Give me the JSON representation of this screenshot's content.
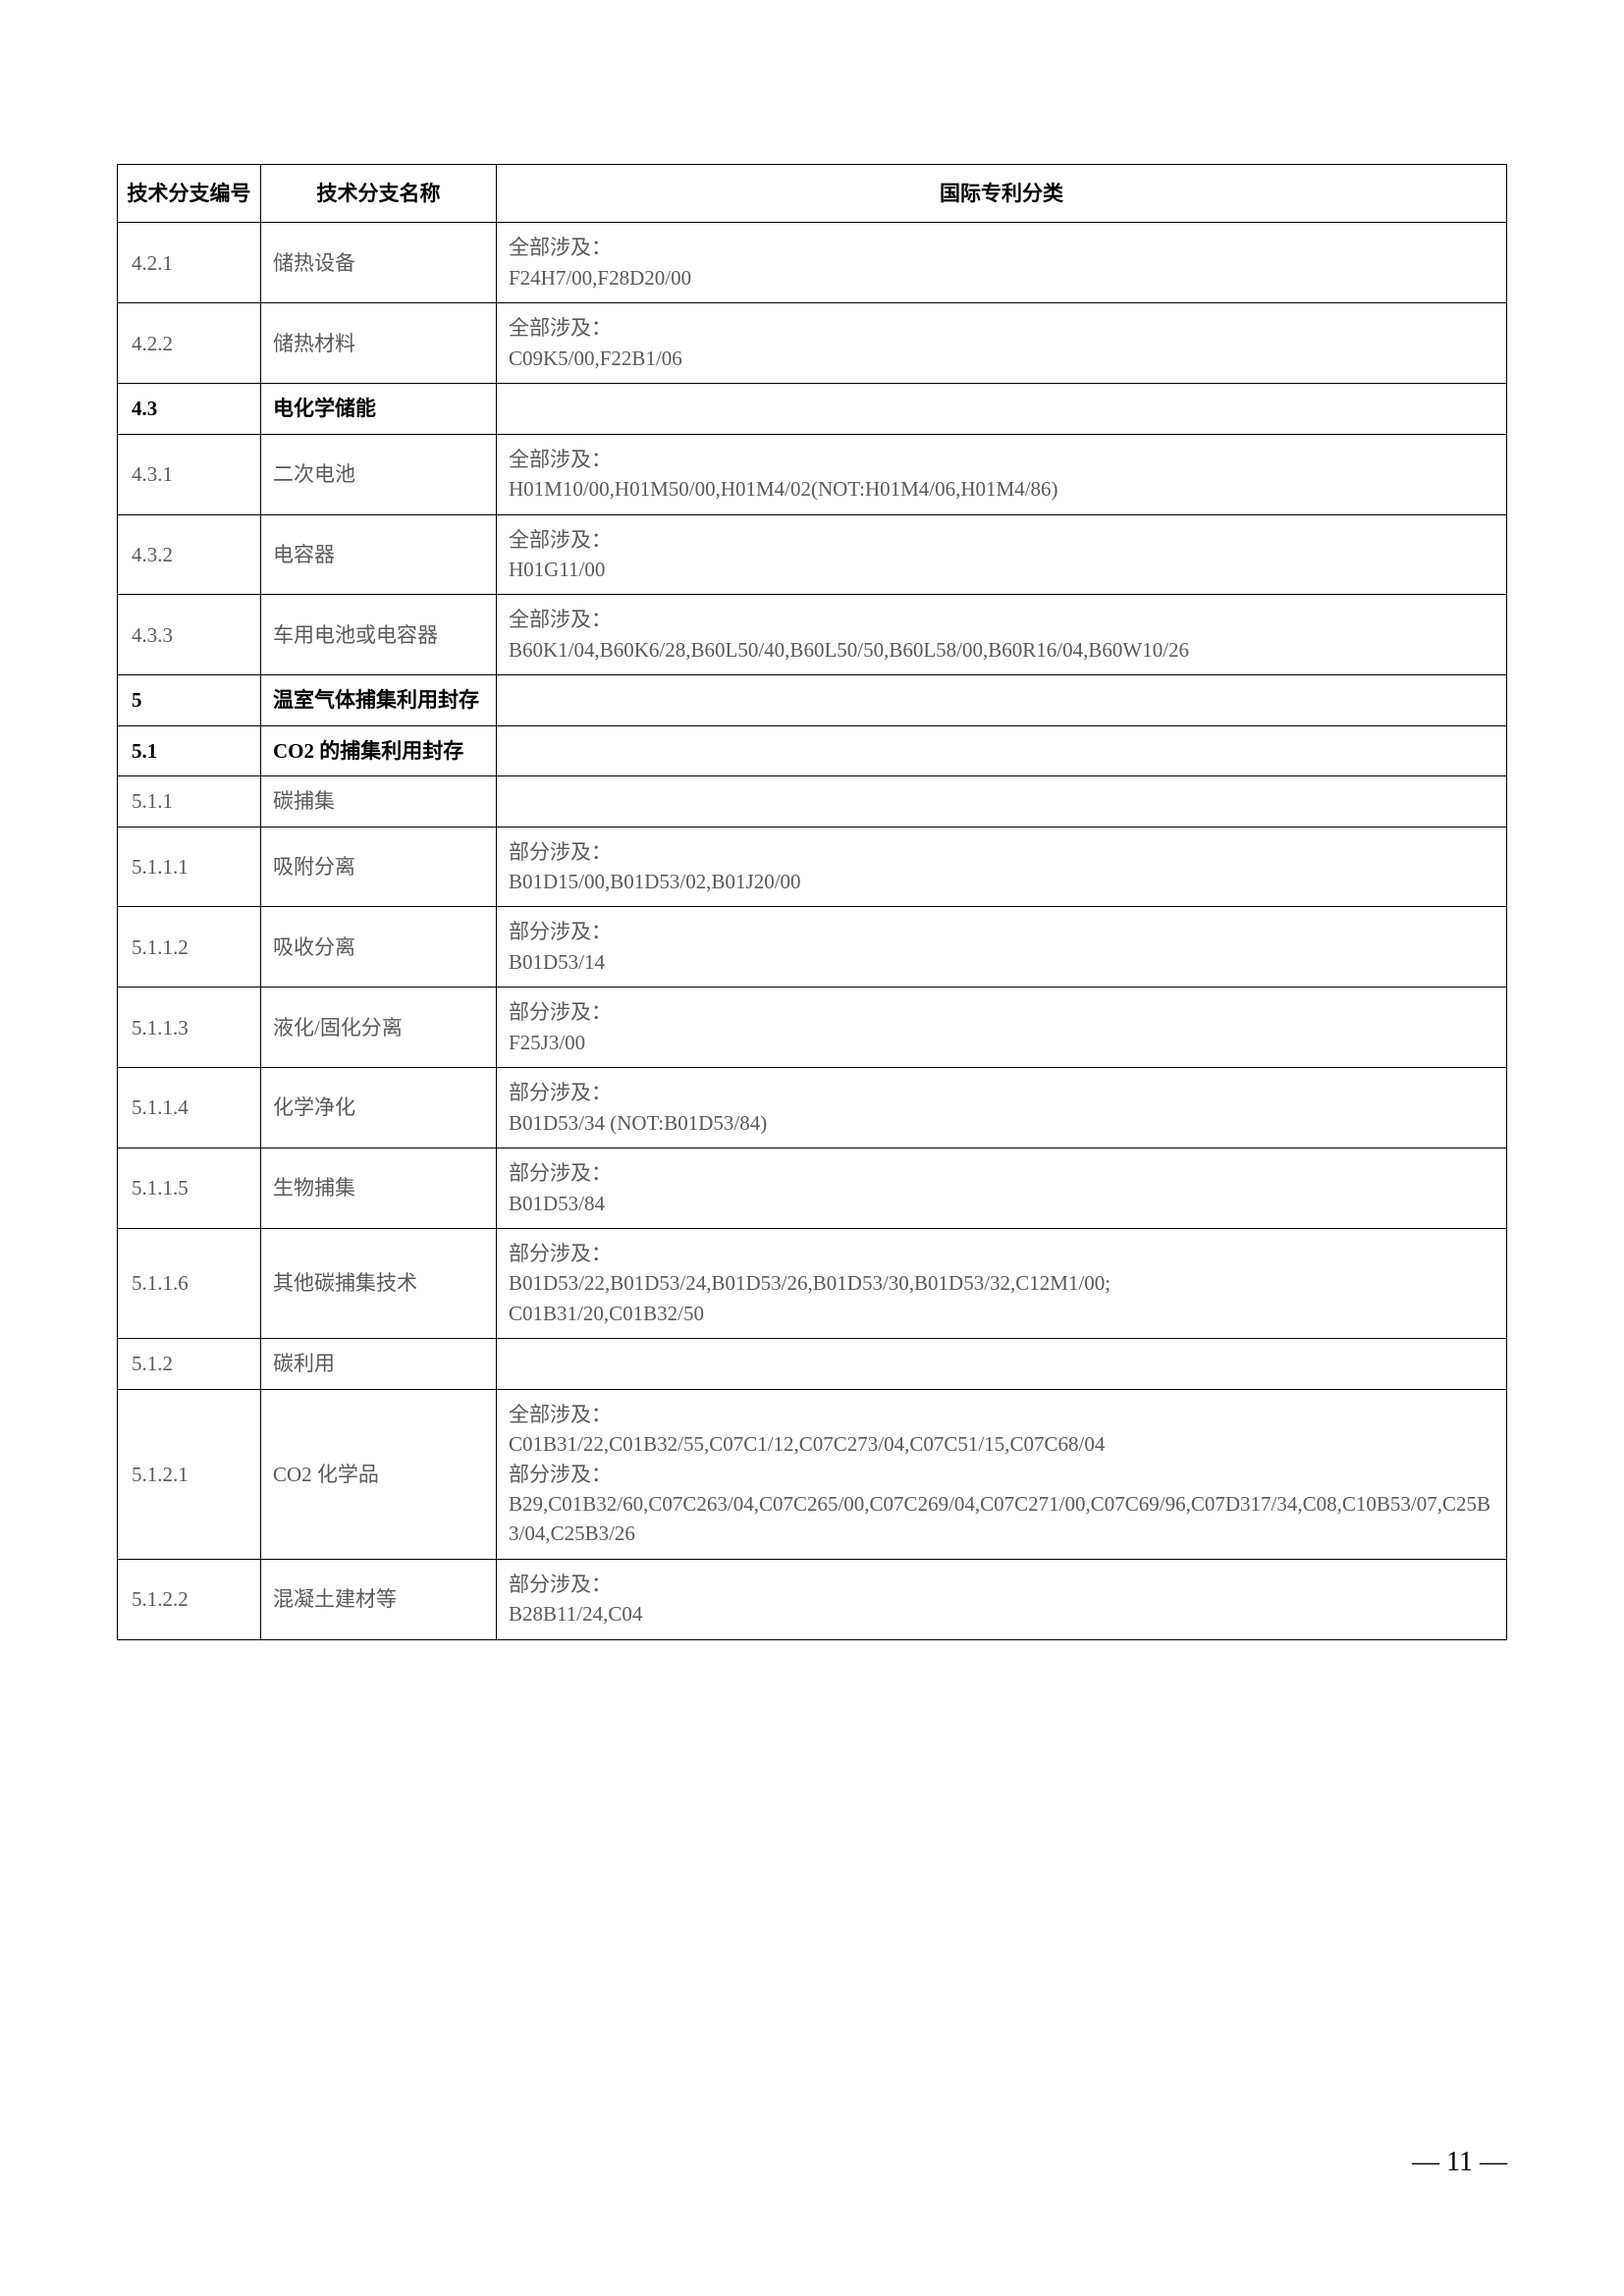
{
  "table": {
    "headers": {
      "id": "技术分支编号",
      "name": "技术分支名称",
      "ipc": "国际专利分类"
    },
    "rows": [
      {
        "id": "4.2.1",
        "name": "储热设备",
        "ipc": "全部涉及：\nF24H7/00,F28D20/00",
        "bold": false
      },
      {
        "id": "4.2.2",
        "name": "储热材料",
        "ipc": "全部涉及：\nC09K5/00,F22B1/06",
        "bold": false
      },
      {
        "id": "4.3",
        "name": "电化学储能",
        "ipc": "",
        "bold": true
      },
      {
        "id": "4.3.1",
        "name": "二次电池",
        "ipc": "全部涉及：\nH01M10/00,H01M50/00,H01M4/02(NOT:H01M4/06,H01M4/86)",
        "bold": false
      },
      {
        "id": "4.3.2",
        "name": "电容器",
        "ipc": "全部涉及：\nH01G11/00",
        "bold": false
      },
      {
        "id": "4.3.3",
        "name": "车用电池或电容器",
        "ipc": "全部涉及：\nB60K1/04,B60K6/28,B60L50/40,B60L50/50,B60L58/00,B60R16/04,B60W10/26",
        "bold": false
      },
      {
        "id": "5",
        "name": "温室气体捕集利用封存",
        "ipc": "",
        "bold": true
      },
      {
        "id": "5.1",
        "name": "CO2 的捕集利用封存",
        "ipc": "",
        "bold": true
      },
      {
        "id": "5.1.1",
        "name": "碳捕集",
        "ipc": "",
        "bold": false
      },
      {
        "id": "5.1.1.1",
        "name": "吸附分离",
        "ipc": "部分涉及：\nB01D15/00,B01D53/02,B01J20/00",
        "bold": false
      },
      {
        "id": "5.1.1.2",
        "name": "吸收分离",
        "ipc": "部分涉及：\nB01D53/14",
        "bold": false
      },
      {
        "id": "5.1.1.3",
        "name": "液化/固化分离",
        "ipc": "部分涉及：\nF25J3/00",
        "bold": false
      },
      {
        "id": "5.1.1.4",
        "name": "化学净化",
        "ipc": "部分涉及：\nB01D53/34 (NOT:B01D53/84)",
        "bold": false
      },
      {
        "id": "5.1.1.5",
        "name": "生物捕集",
        "ipc": "部分涉及：\nB01D53/84",
        "bold": false
      },
      {
        "id": "5.1.1.6",
        "name": "其他碳捕集技术",
        "ipc": "部分涉及：\nB01D53/22,B01D53/24,B01D53/26,B01D53/30,B01D53/32,C12M1/00;\nC01B31/20,C01B32/50",
        "bold": false
      },
      {
        "id": "5.1.2",
        "name": "碳利用",
        "ipc": "",
        "bold": false
      },
      {
        "id": "5.1.2.1",
        "name": "CO2 化学品",
        "ipc": "全部涉及：\nC01B31/22,C01B32/55,C07C1/12,C07C273/04,C07C51/15,C07C68/04\n部分涉及：\nB29,C01B32/60,C07C263/04,C07C265/00,C07C269/04,C07C271/00,C07C69/96,C07D317/34,C08,C10B53/07,C25B3/04,C25B3/26",
        "bold": false
      },
      {
        "id": "5.1.2.2",
        "name": "混凝土建材等",
        "ipc": "部分涉及：\nB28B11/24,C04",
        "bold": false
      }
    ]
  },
  "page_number": "— 11 —"
}
